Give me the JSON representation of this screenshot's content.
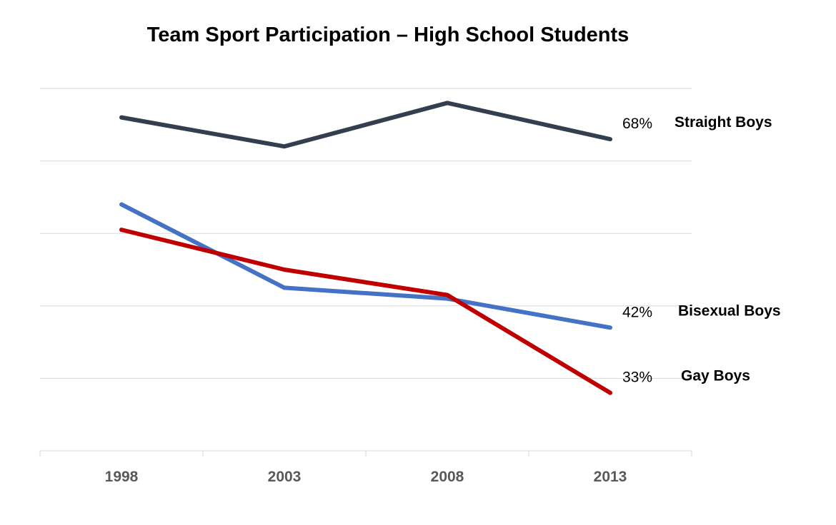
{
  "chart_data": {
    "type": "line",
    "title": "Team Sport Participation – High School Students",
    "xlabel": "",
    "ylabel": "",
    "categories": [
      "1998",
      "2003",
      "2008",
      "2013"
    ],
    "ylim": [
      25,
      75
    ],
    "grid": true,
    "series": [
      {
        "name": "Straight Boys",
        "values": [
          71,
          67,
          73,
          68
        ],
        "end_label": "68%",
        "color": "#333f50"
      },
      {
        "name": "Bisexual Boys",
        "values": [
          59,
          47.5,
          46,
          42
        ],
        "end_label": "42%",
        "color": "#4472c4"
      },
      {
        "name": "Gay Boys",
        "values": [
          55.5,
          50,
          46.5,
          33
        ],
        "end_label": "33%",
        "color": "#c00000"
      }
    ]
  }
}
